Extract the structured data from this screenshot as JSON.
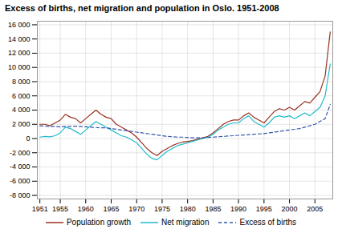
{
  "chart_data": {
    "type": "line",
    "title": "Excess of births, net migration and population in Oslo. 1951-2008",
    "x": [
      1951,
      1952,
      1953,
      1954,
      1955,
      1956,
      1957,
      1958,
      1959,
      1960,
      1961,
      1962,
      1963,
      1964,
      1965,
      1966,
      1967,
      1968,
      1969,
      1970,
      1971,
      1972,
      1973,
      1974,
      1975,
      1976,
      1977,
      1978,
      1979,
      1980,
      1981,
      1982,
      1983,
      1984,
      1985,
      1986,
      1987,
      1988,
      1989,
      1990,
      1991,
      1992,
      1993,
      1994,
      1995,
      1996,
      1997,
      1998,
      1999,
      2000,
      2001,
      2002,
      2003,
      2004,
      2005,
      2006,
      2007,
      2008
    ],
    "series": [
      {
        "name": "Population growth",
        "color": "#993322",
        "line_style": "solid",
        "values": [
          2000,
          2000,
          1800,
          2200,
          2600,
          3400,
          3000,
          2800,
          2200,
          2800,
          3400,
          4000,
          3400,
          3000,
          2800,
          2000,
          1600,
          1200,
          800,
          200,
          -600,
          -1400,
          -2000,
          -2400,
          -1800,
          -1400,
          -1000,
          -700,
          -500,
          -400,
          -300,
          -100,
          100,
          300,
          800,
          1400,
          2000,
          2400,
          2600,
          2600,
          3200,
          3600,
          3000,
          2600,
          2200,
          3000,
          3800,
          4200,
          4000,
          4400,
          4000,
          4600,
          5200,
          5000,
          5800,
          6600,
          8800,
          15000
        ]
      },
      {
        "name": "Net migration",
        "color": "#22bbcc",
        "line_style": "solid",
        "values": [
          200,
          300,
          250,
          400,
          800,
          1600,
          1400,
          1000,
          600,
          1200,
          1800,
          2400,
          2000,
          1600,
          1200,
          800,
          400,
          200,
          -200,
          -600,
          -1400,
          -2200,
          -2800,
          -3000,
          -2400,
          -1800,
          -1400,
          -1000,
          -800,
          -600,
          -400,
          -200,
          0,
          200,
          600,
          1200,
          1600,
          2000,
          2200,
          2200,
          2800,
          3200,
          2400,
          2000,
          1600,
          2200,
          3000,
          3200,
          3000,
          3200,
          2800,
          3200,
          3600,
          3200,
          3800,
          4400,
          6000,
          10500
        ]
      },
      {
        "name": "Excess of births",
        "color": "#3355aa",
        "line_style": "dashed",
        "values": [
          1800,
          1750,
          1700,
          1700,
          1650,
          1700,
          1700,
          1750,
          1700,
          1650,
          1600,
          1550,
          1500,
          1500,
          1400,
          1300,
          1200,
          1100,
          1000,
          900,
          800,
          700,
          600,
          500,
          400,
          300,
          250,
          200,
          200,
          150,
          100,
          100,
          100,
          150,
          200,
          250,
          300,
          350,
          400,
          450,
          500,
          550,
          600,
          650,
          700,
          800,
          900,
          1000,
          1100,
          1200,
          1300,
          1400,
          1600,
          1800,
          2000,
          2400,
          2800,
          4800
        ]
      }
    ],
    "xlim": [
      1950.5,
      2008.5
    ],
    "xticks": [
      1951,
      1955,
      1960,
      1965,
      1970,
      1975,
      1980,
      1985,
      1990,
      1995,
      2000,
      2005
    ],
    "ylim": [
      -8500,
      16500
    ],
    "yticks": [
      {
        "value": -8000,
        "label": "-8 000"
      },
      {
        "value": -6000,
        "label": "-6 000"
      },
      {
        "value": -4000,
        "label": "-4 000"
      },
      {
        "value": -2000,
        "label": "-2 000"
      },
      0,
      {
        "value": 2000,
        "label": "2 000"
      },
      {
        "value": 4000,
        "label": "4 000"
      },
      {
        "value": 6000,
        "label": "6 000"
      },
      {
        "value": 8000,
        "label": "8 000"
      },
      {
        "value": 10000,
        "label": "10 000"
      },
      {
        "value": 12000,
        "label": "12 000"
      },
      {
        "value": 14000,
        "label": "14 000"
      },
      {
        "value": 16000,
        "label": "16 000"
      }
    ],
    "grid": true,
    "legend": "bottom"
  }
}
